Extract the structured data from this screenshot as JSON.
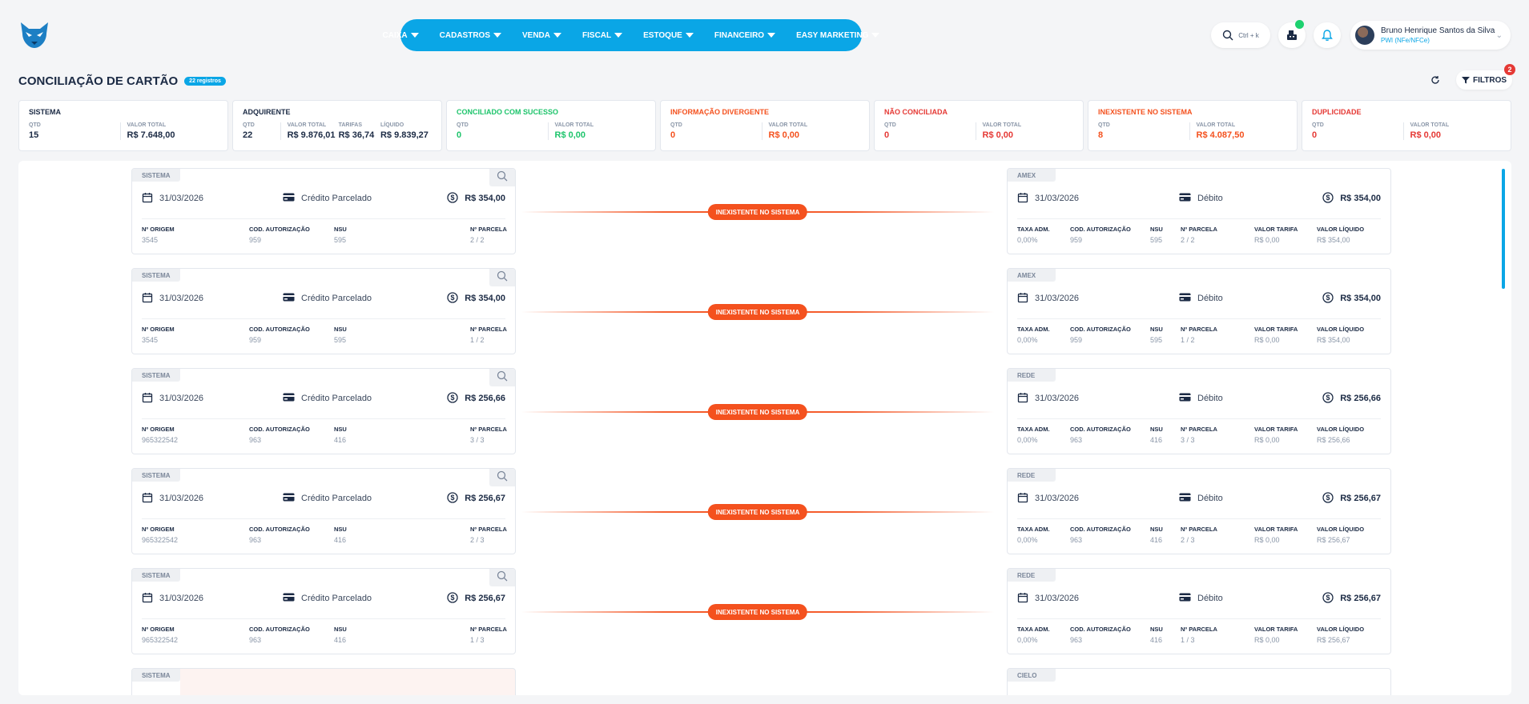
{
  "nav": [
    {
      "label": "CAIXA"
    },
    {
      "label": "CADASTROS"
    },
    {
      "label": "VENDA"
    },
    {
      "label": "FISCAL"
    },
    {
      "label": "ESTOQUE"
    },
    {
      "label": "FINANCEIRO"
    },
    {
      "label": "EASY MARKETING"
    }
  ],
  "search": {
    "shortcut": "Ctrl + k"
  },
  "user": {
    "name": "Bruno Henrique Santos da Silva",
    "subtitle": "PWI (NFe/NFCe)"
  },
  "page": {
    "title": "CONCILIAÇÃO DE CARTÃO",
    "badge": "22 registros"
  },
  "filters": {
    "label": "FILTROS",
    "count": "2"
  },
  "summary": [
    {
      "title": "SISTEMA",
      "color": "#1b2a44",
      "cols": [
        {
          "label": "QTD",
          "value": "15"
        },
        {
          "label": "VALOR TOTAL",
          "value": "R$ 7.648,00"
        }
      ]
    },
    {
      "title": "ADQUIRENTE",
      "color": "#1b2a44",
      "cols": [
        {
          "label": "QTD",
          "value": "22"
        },
        {
          "label": "VALOR TOTAL",
          "value": "R$ 9.876,01"
        },
        {
          "label": "TARIFAS",
          "value": "R$ 36,74"
        },
        {
          "label": "LÍQUIDO",
          "value": "R$ 9.839,27"
        }
      ]
    },
    {
      "title": "CONCILIADO COM SUCESSO",
      "color": "#1dc46b",
      "cols": [
        {
          "label": "QTD",
          "value": "0"
        },
        {
          "label": "VALOR TOTAL",
          "value": "R$ 0,00"
        }
      ]
    },
    {
      "title": "INFORMAÇÃO DIVERGENTE",
      "color": "#f4511e",
      "cols": [
        {
          "label": "QTD",
          "value": "0"
        },
        {
          "label": "VALOR TOTAL",
          "value": "R$ 0,00"
        }
      ]
    },
    {
      "title": "NÃO CONCILIADA",
      "color": "#e53935",
      "cols": [
        {
          "label": "QTD",
          "value": "0"
        },
        {
          "label": "VALOR TOTAL",
          "value": "R$ 0,00"
        }
      ]
    },
    {
      "title": "INEXISTENTE NO SISTEMA",
      "color": "#f4511e",
      "cols": [
        {
          "label": "QTD",
          "value": "8"
        },
        {
          "label": "VALOR TOTAL",
          "value": "R$ 4.087,50"
        }
      ]
    },
    {
      "title": "DUPLICIDADE",
      "color": "#e53935",
      "cols": [
        {
          "label": "QTD",
          "value": "0"
        },
        {
          "label": "VALOR TOTAL",
          "value": "R$ 0,00"
        }
      ]
    }
  ],
  "left_field_labels": [
    "Nº ORIGEM",
    "COD. AUTORIZAÇÃO",
    "NSU",
    "Nº PARCELA"
  ],
  "right_field_labels": [
    "TAXA ADM.",
    "COD. AUTORIZAÇÃO",
    "NSU",
    "Nº PARCELA",
    "VALOR TARIFA",
    "VALOR LÍQUIDO"
  ],
  "rows": [
    {
      "status": "INEXISTENTE NO SISTEMA",
      "left": {
        "source": "SISTEMA",
        "date": "31/03/2026",
        "type": "Crédito Parcelado",
        "amount": "R$ 354,00",
        "fields": [
          "3545",
          "959",
          "595",
          "2 / 2"
        ]
      },
      "right": {
        "source": "AMEX",
        "date": "31/03/2026",
        "type": "Débito",
        "amount": "R$ 354,00",
        "fields": [
          "0,00%",
          "959",
          "595",
          "2 / 2",
          "R$ 0,00",
          "R$ 354,00"
        ]
      }
    },
    {
      "status": "INEXISTENTE NO SISTEMA",
      "left": {
        "source": "SISTEMA",
        "date": "31/03/2026",
        "type": "Crédito Parcelado",
        "amount": "R$ 354,00",
        "fields": [
          "3545",
          "959",
          "595",
          "1 / 2"
        ]
      },
      "right": {
        "source": "AMEX",
        "date": "31/03/2026",
        "type": "Débito",
        "amount": "R$ 354,00",
        "fields": [
          "0,00%",
          "959",
          "595",
          "1 / 2",
          "R$ 0,00",
          "R$ 354,00"
        ]
      }
    },
    {
      "status": "INEXISTENTE NO SISTEMA",
      "left": {
        "source": "SISTEMA",
        "date": "31/03/2026",
        "type": "Crédito Parcelado",
        "amount": "R$ 256,66",
        "fields": [
          "965322542",
          "963",
          "416",
          "3 / 3"
        ]
      },
      "right": {
        "source": "REDE",
        "date": "31/03/2026",
        "type": "Débito",
        "amount": "R$ 256,66",
        "fields": [
          "0,00%",
          "963",
          "416",
          "3 / 3",
          "R$ 0,00",
          "R$ 256,66"
        ]
      }
    },
    {
      "status": "INEXISTENTE NO SISTEMA",
      "left": {
        "source": "SISTEMA",
        "date": "31/03/2026",
        "type": "Crédito Parcelado",
        "amount": "R$ 256,67",
        "fields": [
          "965322542",
          "963",
          "416",
          "2 / 3"
        ]
      },
      "right": {
        "source": "REDE",
        "date": "31/03/2026",
        "type": "Débito",
        "amount": "R$ 256,67",
        "fields": [
          "0,00%",
          "963",
          "416",
          "2 / 3",
          "R$ 0,00",
          "R$ 256,67"
        ]
      }
    },
    {
      "status": "INEXISTENTE NO SISTEMA",
      "left": {
        "source": "SISTEMA",
        "date": "31/03/2026",
        "type": "Crédito Parcelado",
        "amount": "R$ 256,67",
        "fields": [
          "965322542",
          "963",
          "416",
          "1 / 3"
        ]
      },
      "right": {
        "source": "REDE",
        "date": "31/03/2026",
        "type": "Débito",
        "amount": "R$ 256,67",
        "fields": [
          "0,00%",
          "963",
          "416",
          "1 / 3",
          "R$ 0,00",
          "R$ 256,67"
        ]
      }
    }
  ],
  "partial_row": {
    "left_source": "SISTEMA",
    "right_source": "CIELO"
  }
}
